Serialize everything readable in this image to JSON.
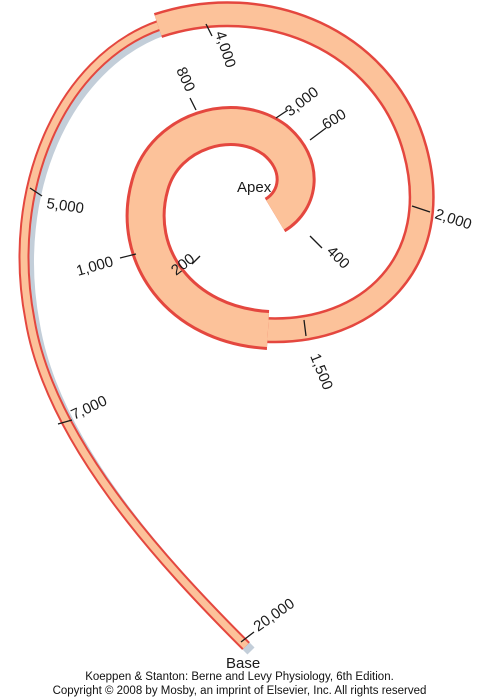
{
  "labels": {
    "apex": "Apex",
    "base": "Base"
  },
  "frequency_markers": [
    "20,000",
    "7,000",
    "5,000",
    "4,000",
    "3,000",
    "2,000",
    "1,500",
    "1,000",
    "800",
    "600",
    "400",
    "200"
  ],
  "credit": {
    "line1": "Koeppen & Stanton: Berne and Levy Physiology, 6th Edition.",
    "line2": "Copyright © 2008 by Mosby, an imprint of Elsevier, Inc. All rights reserved"
  },
  "colors": {
    "fill": "#fcc29a",
    "outline": "#e4473f",
    "shadow": "#bcc9d5",
    "tick": "#1a1a1a"
  }
}
